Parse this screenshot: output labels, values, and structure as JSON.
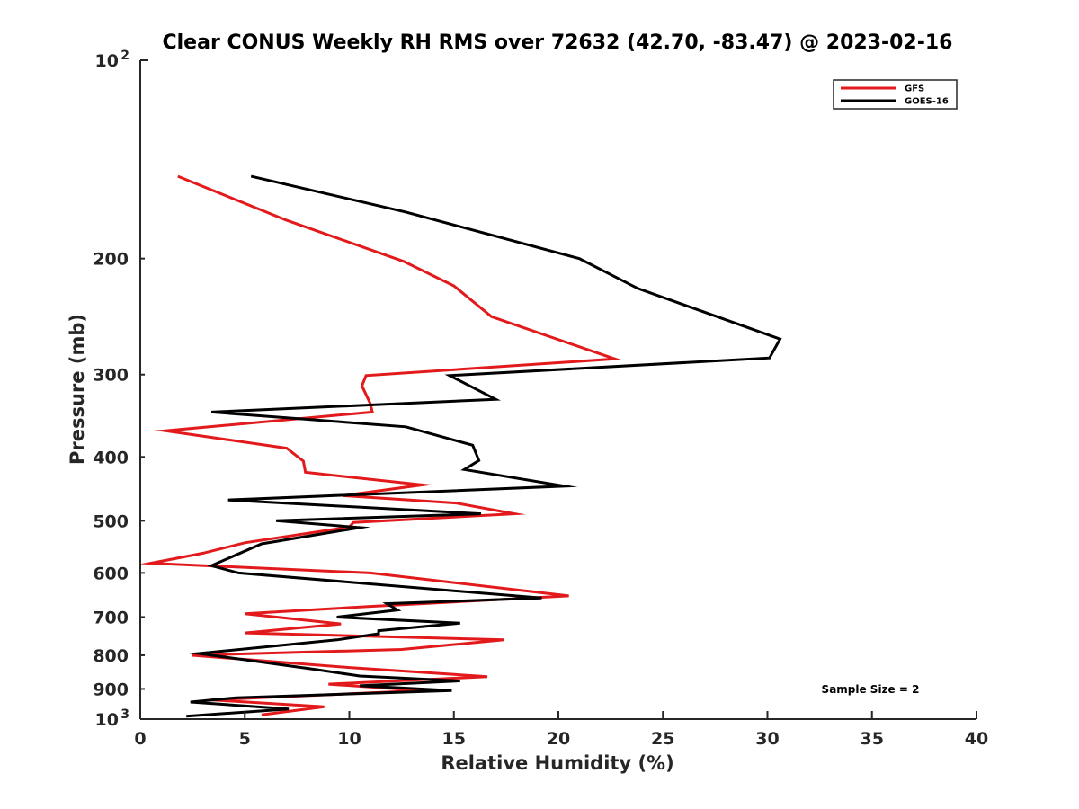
{
  "chart_data": {
    "type": "line",
    "title": "Clear CONUS Weekly RH RMS over 72632 (42.70, -83.47) @ 2023-02-16",
    "xlabel": "Relative Humidity (%)",
    "ylabel": "Pressure (mb)",
    "xlim": [
      0,
      40
    ],
    "ylim": [
      100,
      1000
    ],
    "y_scale": "log",
    "y_reversed": true,
    "grid": false,
    "legend_position": "top-right",
    "x_ticks": [
      "0",
      "5",
      "10",
      "15",
      "20",
      "25",
      "30",
      "35",
      "40"
    ],
    "y_ticks": [
      {
        "value": 100,
        "label": "10",
        "sup": "2"
      },
      {
        "value": 200,
        "label": "200"
      },
      {
        "value": 300,
        "label": "300"
      },
      {
        "value": 400,
        "label": "400"
      },
      {
        "value": 500,
        "label": "500"
      },
      {
        "value": 600,
        "label": "600"
      },
      {
        "value": 700,
        "label": "700"
      },
      {
        "value": 800,
        "label": "800"
      },
      {
        "value": 900,
        "label": "900"
      },
      {
        "value": 1000,
        "label": "10",
        "sup": "3"
      }
    ],
    "annotation": "Sample Size = 2",
    "series": [
      {
        "name": "GFS",
        "color": "#e31a1c",
        "points": [
          [
            1.8,
            150
          ],
          [
            7.0,
            175
          ],
          [
            12.6,
            202
          ],
          [
            15.0,
            220
          ],
          [
            16.8,
            245
          ],
          [
            22.7,
            284
          ],
          [
            10.8,
            301
          ],
          [
            10.6,
            312
          ],
          [
            11.0,
            332
          ],
          [
            11.1,
            342
          ],
          [
            1.2,
            365
          ],
          [
            7.0,
            388
          ],
          [
            7.8,
            406
          ],
          [
            7.9,
            422
          ],
          [
            13.5,
            441
          ],
          [
            9.7,
            458
          ],
          [
            15.1,
            470
          ],
          [
            17.9,
            488
          ],
          [
            10.2,
            503
          ],
          [
            10.0,
            511
          ],
          [
            5.0,
            540
          ],
          [
            3.0,
            560
          ],
          [
            0.5,
            580
          ],
          [
            11.0,
            600
          ],
          [
            20.5,
            650
          ],
          [
            10.8,
            675
          ],
          [
            5.0,
            692
          ],
          [
            9.6,
            717
          ],
          [
            5.0,
            740
          ],
          [
            17.4,
            758
          ],
          [
            12.5,
            784
          ],
          [
            2.5,
            800
          ],
          [
            10.0,
            835
          ],
          [
            16.6,
            862
          ],
          [
            9.0,
            885
          ],
          [
            13.5,
            905
          ],
          [
            3.4,
            935
          ],
          [
            8.8,
            958
          ],
          [
            5.8,
            985
          ]
        ]
      },
      {
        "name": "GOES-16",
        "color": "#000000",
        "points": [
          [
            5.3,
            150
          ],
          [
            12.7,
            170
          ],
          [
            21.0,
            200
          ],
          [
            23.8,
            222
          ],
          [
            30.6,
            265
          ],
          [
            30.1,
            283
          ],
          [
            14.8,
            301
          ],
          [
            17.0,
            327
          ],
          [
            3.4,
            342
          ],
          [
            12.7,
            360
          ],
          [
            15.9,
            384
          ],
          [
            16.2,
            405
          ],
          [
            15.5,
            418
          ],
          [
            20.3,
            443
          ],
          [
            4.2,
            465
          ],
          [
            16.3,
            488
          ],
          [
            6.5,
            500
          ],
          [
            10.5,
            512
          ],
          [
            5.8,
            542
          ],
          [
            3.4,
            585
          ],
          [
            4.7,
            600
          ],
          [
            19.2,
            655
          ],
          [
            11.8,
            668
          ],
          [
            12.3,
            683
          ],
          [
            9.4,
            700
          ],
          [
            15.3,
            715
          ],
          [
            11.4,
            734
          ],
          [
            11.4,
            742
          ],
          [
            9.4,
            758
          ],
          [
            2.8,
            795
          ],
          [
            8.3,
            840
          ],
          [
            10.5,
            860
          ],
          [
            15.3,
            875
          ],
          [
            10.5,
            890
          ],
          [
            14.9,
            905
          ],
          [
            4.6,
            928
          ],
          [
            2.4,
            942
          ],
          [
            7.1,
            965
          ],
          [
            2.2,
            990
          ]
        ]
      }
    ]
  }
}
